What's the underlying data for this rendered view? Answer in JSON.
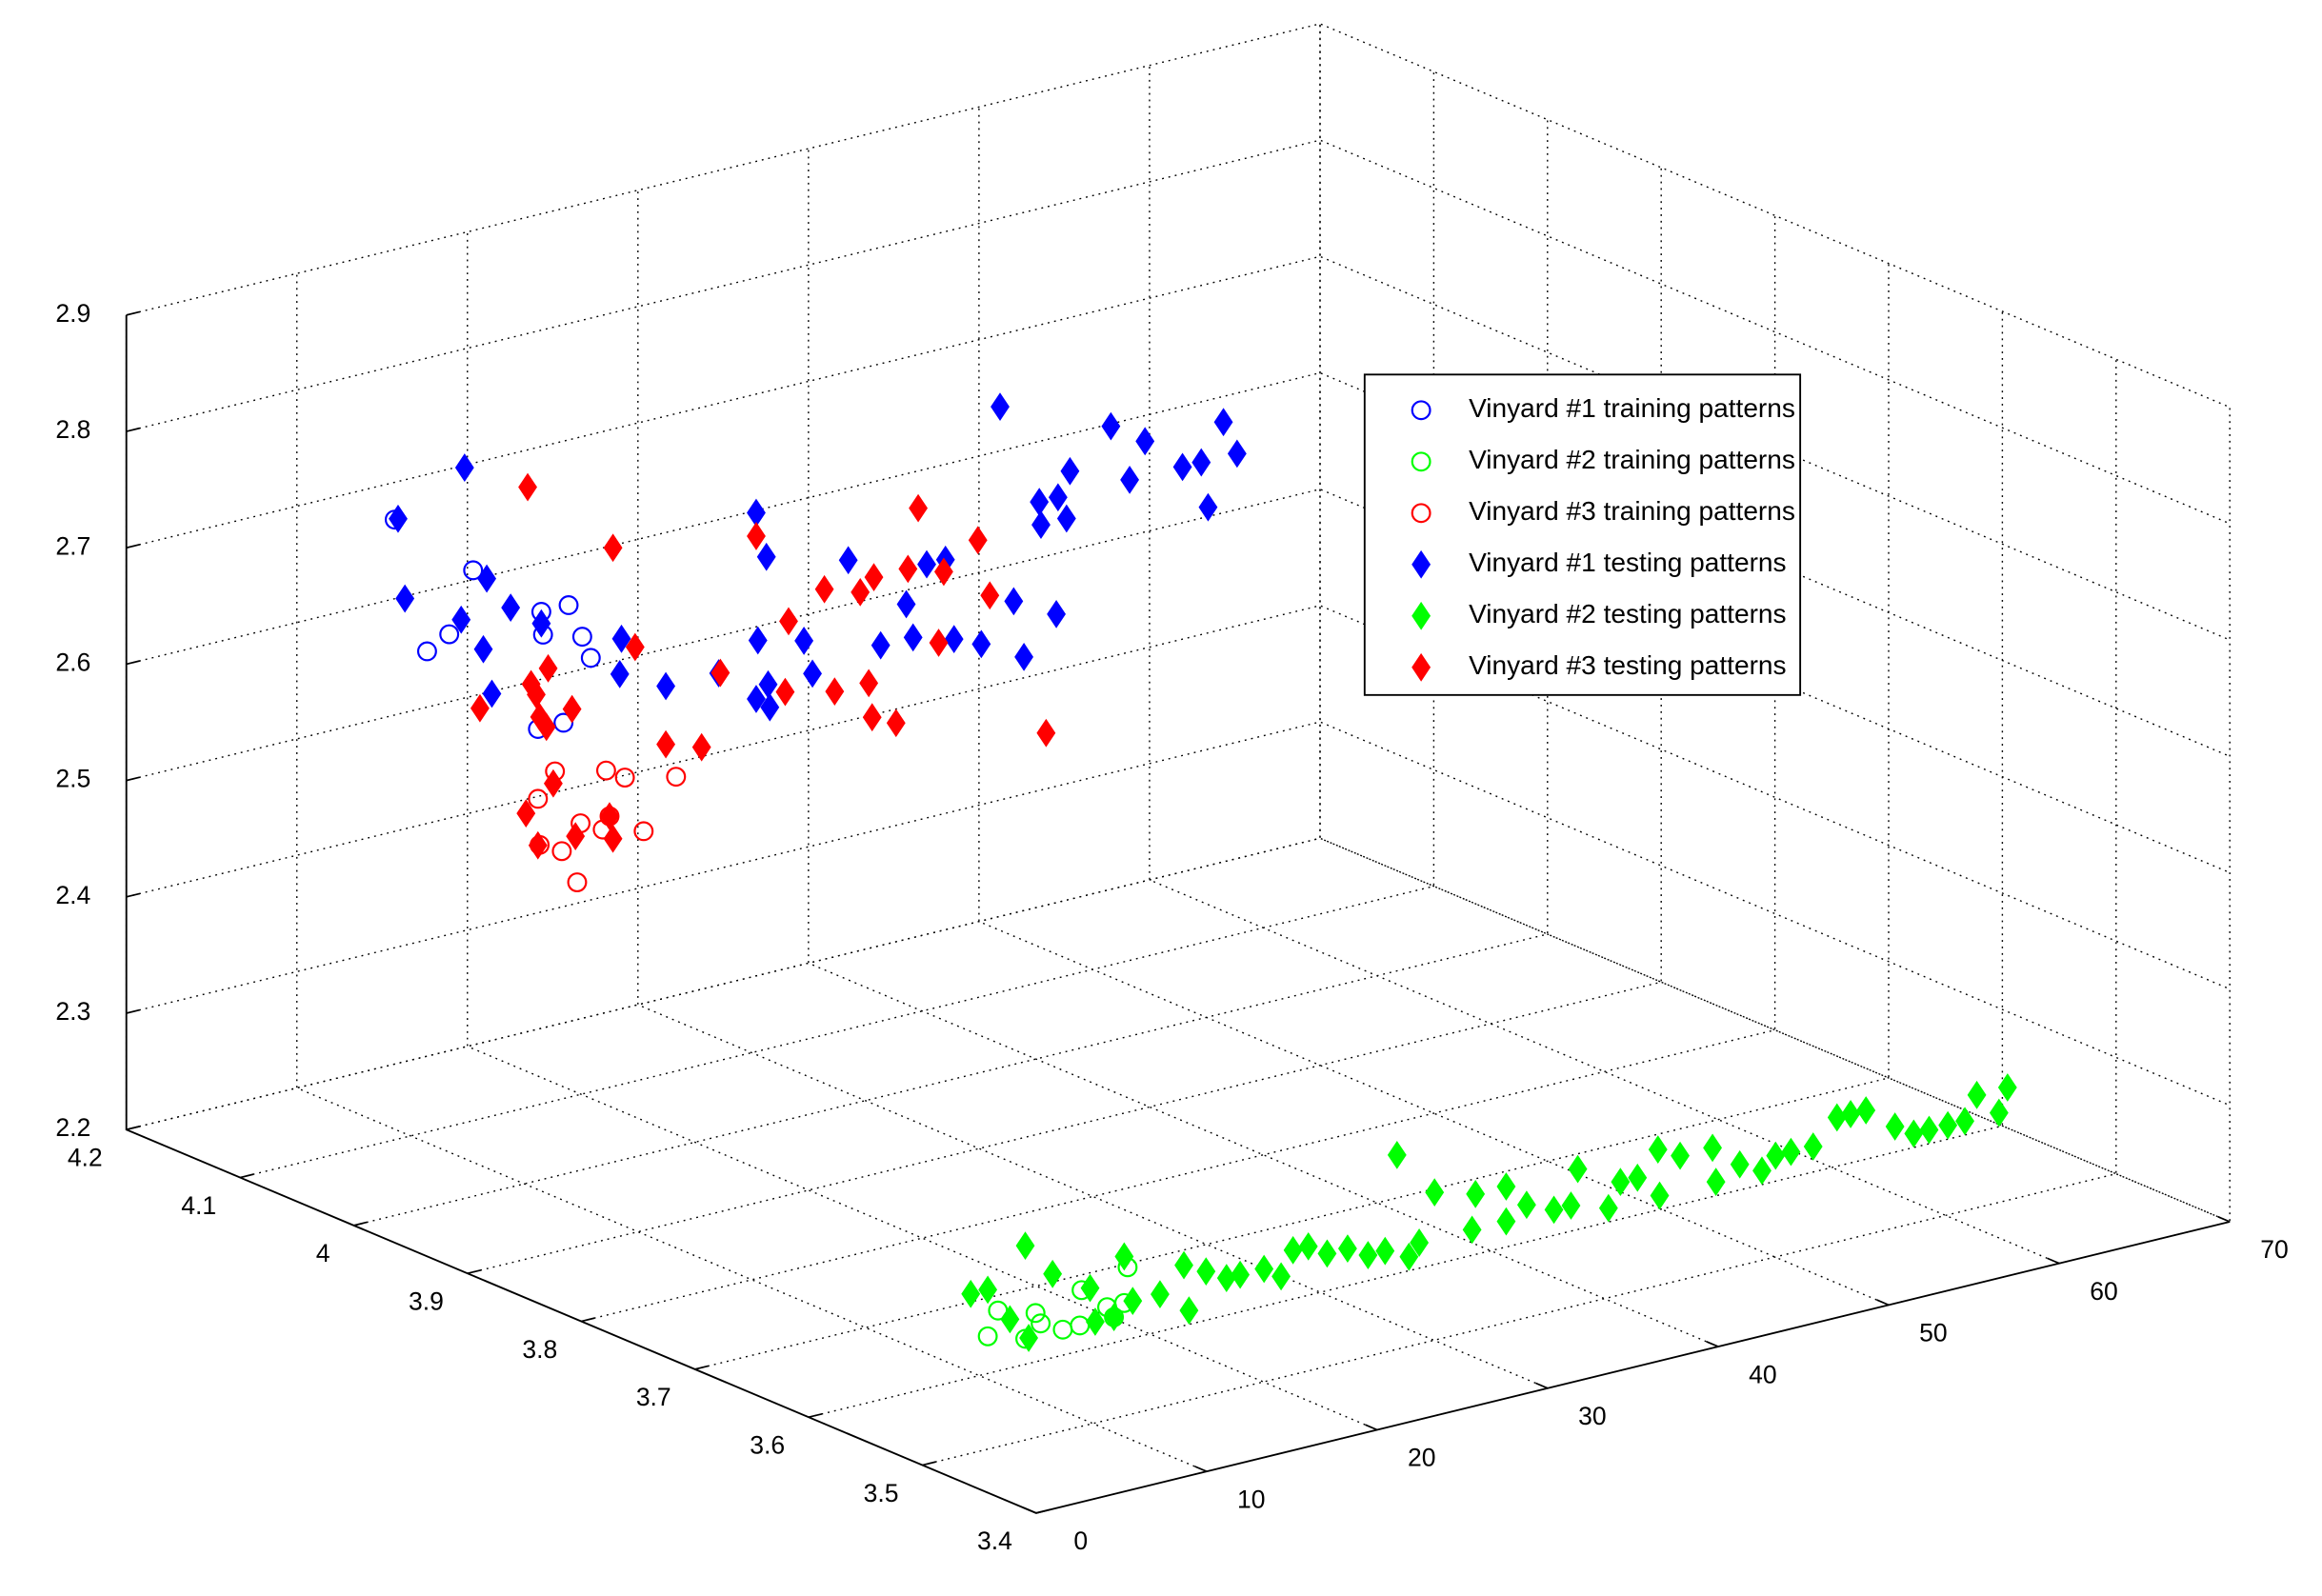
{
  "chart_data": {
    "type": "scatter3d",
    "xlim": [
      0,
      70
    ],
    "xticks": [
      0,
      10,
      20,
      30,
      40,
      50,
      60,
      70
    ],
    "ylim": [
      3.4,
      4.2
    ],
    "yticks": [
      3.4,
      3.5,
      3.6,
      3.7,
      3.8,
      3.9,
      4,
      4.1,
      4.2
    ],
    "zlim": [
      2.2,
      2.9
    ],
    "zticks": [
      2.2,
      2.3,
      2.4,
      2.5,
      2.6,
      2.7,
      2.8,
      2.9
    ],
    "grid": true,
    "legend": "upper right",
    "series": [
      {
        "name": "Vinyard #1 training patterns",
        "color": "#0000ff",
        "marker": "o",
        "x": [
          10.4,
          15.0,
          12.3,
          13.6,
          20.6,
          19.1,
          21.4,
          21.9,
          19.0,
          18.8,
          20.3
        ],
        "y": [
          4.12,
          4.12,
          4.12,
          4.12,
          4.12,
          4.12,
          4.12,
          4.12,
          4.12,
          4.12,
          4.12
        ],
        "z": [
          2.72,
          2.66,
          2.6,
          2.61,
          2.61,
          2.59,
          2.58,
          2.56,
          2.61,
          2.51,
          2.51
        ]
      },
      {
        "name": "Vinyard #2 training patterns",
        "color": "#00ff00",
        "marker": "o",
        "x": [
          2.5,
          3.1,
          4.7,
          5.3,
          5.6,
          6.9,
          7.9,
          8.0,
          9.5,
          9.9,
          10.5,
          10.7
        ],
        "y": [
          3.48,
          3.48,
          3.48,
          3.48,
          3.48,
          3.48,
          3.48,
          3.48,
          3.48,
          3.48,
          3.48,
          3.48
        ],
        "z": [
          2.31,
          2.33,
          2.3,
          2.32,
          2.31,
          2.3,
          2.3,
          2.33,
          2.31,
          2.3,
          2.31,
          2.34
        ]
      },
      {
        "name": "Vinyard #3 training patterns",
        "color": "#ff0000",
        "marker": "o",
        "x": [
          19.8,
          18.9,
          20.2,
          21.3,
          21.1,
          22.8,
          23.9,
          22.6,
          23.0,
          25.0,
          26.9,
          18.8
        ],
        "y": [
          4.12,
          4.12,
          4.12,
          4.12,
          4.12,
          4.12,
          4.12,
          4.12,
          4.12,
          4.12,
          4.12,
          4.12
        ],
        "z": [
          2.47,
          2.41,
          2.4,
          2.42,
          2.37,
          2.46,
          2.45,
          2.41,
          2.42,
          2.4,
          2.44,
          2.45
        ]
      },
      {
        "name": "Vinyard #1 testing patterns",
        "color": "#0000ff",
        "marker": "d",
        "x": [
          10.6,
          11.0,
          14.5,
          15.6,
          15.8,
          17.2,
          16.1,
          14.3,
          19.0,
          23.7,
          23.6,
          26.3,
          29.4,
          31.6,
          32.2,
          31.7,
          31.6,
          32.3,
          32.4,
          34.4,
          34.9,
          37.0,
          38.9,
          40.4,
          40.8,
          41.6,
          42.7,
          43.2,
          44.8,
          45.9,
          46.7,
          47.3,
          48.2,
          48.3,
          49.3,
          49.2,
          49.8,
          50.0,
          52.4,
          53.5,
          54.4,
          56.6,
          57.7,
          58.1,
          59.0,
          59.8
        ],
        "y": [
          4.12,
          4.12,
          4.12,
          4.12,
          4.12,
          4.12,
          4.12,
          4.12,
          4.12,
          4.12,
          4.12,
          4.12,
          4.12,
          4.12,
          4.12,
          4.12,
          4.12,
          4.12,
          4.12,
          4.12,
          4.12,
          4.12,
          4.12,
          4.12,
          4.12,
          4.12,
          4.12,
          4.12,
          4.12,
          4.12,
          4.12,
          4.12,
          4.12,
          4.12,
          4.12,
          4.12,
          4.12,
          4.12,
          4.12,
          4.12,
          4.12,
          4.12,
          4.12,
          4.12,
          4.12,
          4.12
        ],
        "z": [
          2.72,
          2.65,
          2.75,
          2.59,
          2.65,
          2.62,
          2.55,
          2.62,
          2.6,
          2.57,
          2.54,
          2.52,
          2.52,
          2.65,
          2.61,
          2.54,
          2.49,
          2.5,
          2.48,
          2.53,
          2.5,
          2.59,
          2.51,
          2.54,
          2.51,
          2.57,
          2.57,
          2.5,
          2.49,
          2.69,
          2.52,
          2.47,
          2.6,
          2.58,
          2.6,
          2.5,
          2.58,
          2.62,
          2.65,
          2.6,
          2.63,
          2.6,
          2.6,
          2.56,
          2.63,
          2.6
        ]
      },
      {
        "name": "Vinyard #2 testing patterns",
        "color": "#00ff00",
        "marker": "d",
        "x": [
          1.5,
          2.5,
          3.8,
          4.7,
          4.9,
          6.3,
          8.5,
          8.8,
          9.9,
          10.5,
          11.0,
          12.6,
          14.0,
          14.3,
          15.3,
          16.5,
          17.3,
          18.7,
          19.7,
          20.4,
          21.3,
          22.4,
          23.6,
          24.8,
          25.8,
          26.5,
          27.2,
          27.8,
          28.7,
          30.9,
          31.1,
          32.9,
          32.9,
          34.1,
          35.7,
          36.7,
          37.1,
          38.9,
          39.6,
          40.6,
          41.8,
          41.9,
          43.1,
          45.0,
          45.2,
          46.6,
          47.9,
          48.7,
          49.6,
          50.9,
          52.3,
          53.1,
          54.0,
          55.7,
          56.8,
          57.7,
          58.8,
          59.8,
          60.5,
          61.8,
          62.3
        ],
        "y": [
          3.48,
          3.48,
          3.48,
          3.48,
          3.48,
          3.48,
          3.48,
          3.48,
          3.48,
          3.48,
          3.48,
          3.48,
          3.48,
          3.48,
          3.48,
          3.48,
          3.48,
          3.48,
          3.48,
          3.48,
          3.48,
          3.48,
          3.48,
          3.48,
          3.48,
          3.48,
          3.48,
          3.48,
          3.48,
          3.48,
          3.48,
          3.48,
          3.48,
          3.48,
          3.48,
          3.48,
          3.48,
          3.48,
          3.48,
          3.48,
          3.48,
          3.48,
          3.48,
          3.48,
          3.48,
          3.48,
          3.48,
          3.48,
          3.48,
          3.48,
          3.48,
          3.48,
          3.48,
          3.48,
          3.48,
          3.48,
          3.48,
          3.48,
          3.48,
          3.48,
          3.48
        ],
        "z": [
          2.35,
          2.35,
          2.32,
          2.38,
          2.3,
          2.35,
          2.33,
          2.3,
          2.3,
          2.35,
          2.31,
          2.31,
          2.33,
          2.29,
          2.32,
          2.31,
          2.31,
          2.31,
          2.3,
          2.32,
          2.32,
          2.31,
          2.31,
          2.3,
          2.3,
          2.38,
          2.29,
          2.3,
          2.34,
          2.3,
          2.33,
          2.33,
          2.3,
          2.31,
          2.3,
          2.3,
          2.33,
          2.29,
          2.31,
          2.31,
          2.33,
          2.29,
          2.32,
          2.32,
          2.29,
          2.3,
          2.29,
          2.3,
          2.3,
          2.3,
          2.32,
          2.32,
          2.32,
          2.3,
          2.29,
          2.29,
          2.29,
          2.29,
          2.31,
          2.29,
          2.31
        ]
      },
      {
        "name": "Vinyard #3 testing patterns",
        "color": "#ff0000",
        "marker": "d",
        "x": [
          18.2,
          15.4,
          18.4,
          18.7,
          18.9,
          19.3,
          19.4,
          19.7,
          20.8,
          18.1,
          18.8,
          21.0,
          23.0,
          23.2,
          23.2,
          24.5,
          26.3,
          28.4,
          29.5,
          31.6,
          33.3,
          33.5,
          35.6,
          36.2,
          37.7,
          38.2,
          38.4,
          38.5,
          39.8,
          40.5,
          41.1,
          42.3,
          42.6,
          44.6,
          45.3,
          48.6
        ],
        "y": [
          4.12,
          4.12,
          4.12,
          4.12,
          4.12,
          4.12,
          4.12,
          4.12,
          4.12,
          4.12,
          4.12,
          4.12,
          4.12,
          4.12,
          4.12,
          4.12,
          4.12,
          4.12,
          4.12,
          4.12,
          4.12,
          4.12,
          4.12,
          4.12,
          4.12,
          4.12,
          4.12,
          4.12,
          4.12,
          4.12,
          4.12,
          4.12,
          4.12,
          4.12,
          4.12,
          4.12
        ],
        "z": [
          2.72,
          2.54,
          2.55,
          2.54,
          2.52,
          2.51,
          2.56,
          2.46,
          2.52,
          2.44,
          2.41,
          2.41,
          2.42,
          2.4,
          2.65,
          2.56,
          2.47,
          2.46,
          2.52,
          2.63,
          2.49,
          2.55,
          2.57,
          2.48,
          2.56,
          2.48,
          2.45,
          2.57,
          2.44,
          2.57,
          2.62,
          2.5,
          2.56,
          2.58,
          2.53,
          2.4
        ]
      }
    ]
  }
}
